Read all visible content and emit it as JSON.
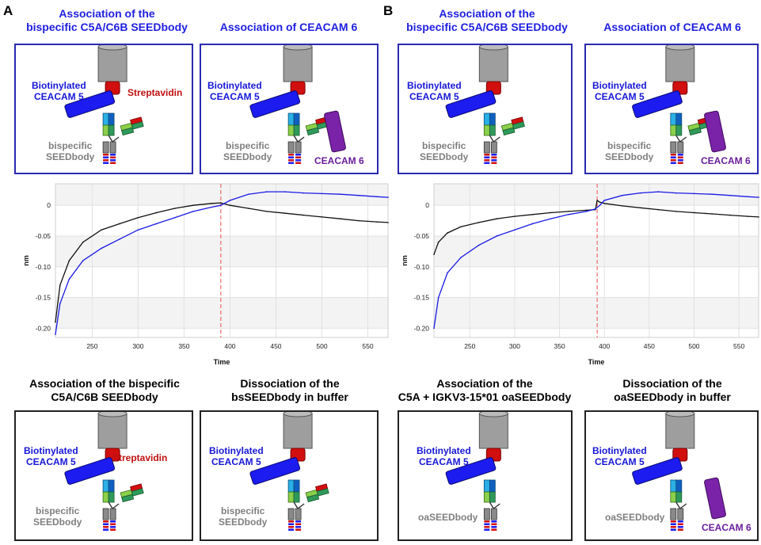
{
  "panels": {
    "A": {
      "letter": "A",
      "top_left": {
        "title": "Association of the\nbispecific C5A/C6B SEEDbody",
        "labels": {
          "biotin": "Biotinylated\nCEACAM 5",
          "strep": "Streptavidin",
          "seed": "bispecific\nSEEDbody"
        }
      },
      "top_right": {
        "title": "Association of CEACAM 6",
        "labels": {
          "biotin": "Biotinylated\nCEACAM 5",
          "seed": "bispecific\nSEEDbody",
          "ceacam6": "CEACAM 6"
        }
      },
      "bottom_left": {
        "title": "Association of the bispecific\nC5A/C6B SEEDbody",
        "labels": {
          "biotin": "Biotinylated\nCEACAM 5",
          "strep": "Streptavidin",
          "seed": "bispecific\nSEEDbody"
        }
      },
      "bottom_right": {
        "title": "Dissociation of the\nbsSEEDbody in buffer",
        "labels": {
          "biotin": "Biotinylated\nCEACAM 5",
          "seed": "bispecific\nSEEDbody"
        }
      }
    },
    "B": {
      "letter": "B",
      "top_left": {
        "title": "Association of the\nbispecific C5A/C6B SEEDbody",
        "labels": {
          "biotin": "Biotinylated\nCEACAM 5",
          "seed": "bispecific\nSEEDbody"
        }
      },
      "top_right": {
        "title": "Association of CEACAM 6",
        "labels": {
          "biotin": "Biotinylated\nCEACAM 5",
          "seed": "bispecific\nSEEDbody",
          "ceacam6": "CEACAM 6"
        }
      },
      "bottom_left": {
        "title": "Association of the\nC5A + IGKV3-15*01 oaSEEDbody",
        "labels": {
          "biotin": "Biotinylated\nCEACAM 5",
          "seed": "oaSEEDbody"
        }
      },
      "bottom_right": {
        "title": "Dissociation of the\noaSEEDbody in buffer",
        "labels": {
          "biotin": "Biotinylated\nCEACAM 5",
          "seed": "oaSEEDbody",
          "ceacam6": "CEACAM 6"
        }
      }
    }
  },
  "colors": {
    "blue_series": "#1a1ae6",
    "black_series": "#111111",
    "marker_line": "#ee6b6b",
    "band": "#f3f3f3"
  },
  "chart_data": [
    {
      "type": "line",
      "panel": "A",
      "xlabel": "Time",
      "ylabel": "nm",
      "xlim": [
        210,
        572
      ],
      "ylim": [
        -0.215,
        0.035
      ],
      "xticks": [
        250,
        300,
        350,
        400,
        450,
        500,
        550
      ],
      "yticks": [
        0,
        -0.05,
        -0.1,
        -0.15,
        -0.2
      ],
      "ytick_labels": [
        "0",
        "-0.05",
        "-0.10",
        "-0.15",
        "-0.20"
      ],
      "marker_x": 390,
      "series": [
        {
          "name": "black",
          "x": [
            210,
            215,
            225,
            240,
            260,
            280,
            300,
            320,
            340,
            360,
            380,
            390,
            400,
            420,
            440,
            460,
            480,
            500,
            520,
            540,
            560,
            572
          ],
          "y": [
            -0.19,
            -0.13,
            -0.09,
            -0.06,
            -0.04,
            -0.03,
            -0.02,
            -0.012,
            -0.005,
            0.0,
            0.003,
            0.004,
            0.0,
            -0.005,
            -0.01,
            -0.013,
            -0.016,
            -0.019,
            -0.022,
            -0.025,
            -0.027,
            -0.028
          ]
        },
        {
          "name": "blue",
          "x": [
            210,
            215,
            225,
            240,
            260,
            280,
            300,
            320,
            340,
            360,
            380,
            390,
            400,
            420,
            440,
            460,
            480,
            500,
            520,
            540,
            560,
            572
          ],
          "y": [
            -0.21,
            -0.16,
            -0.12,
            -0.09,
            -0.07,
            -0.055,
            -0.04,
            -0.03,
            -0.02,
            -0.01,
            -0.003,
            0.0,
            0.008,
            0.018,
            0.022,
            0.022,
            0.02,
            0.019,
            0.018,
            0.016,
            0.014,
            0.013
          ]
        }
      ]
    },
    {
      "type": "line",
      "panel": "B",
      "xlabel": "Time",
      "ylabel": "nm",
      "xlim": [
        210,
        572
      ],
      "ylim": [
        -0.215,
        0.035
      ],
      "xticks": [
        250,
        300,
        350,
        400,
        450,
        500,
        550
      ],
      "yticks": [
        0,
        -0.05,
        -0.1,
        -0.15,
        -0.2
      ],
      "ytick_labels": [
        "0",
        "-0.05",
        "-0.10",
        "-0.15",
        "-0.20"
      ],
      "marker_x": 392,
      "series": [
        {
          "name": "black",
          "x": [
            210,
            215,
            225,
            240,
            260,
            280,
            300,
            320,
            340,
            360,
            380,
            390,
            392,
            395,
            400,
            420,
            440,
            460,
            480,
            500,
            520,
            540,
            560,
            572
          ],
          "y": [
            -0.08,
            -0.06,
            -0.045,
            -0.035,
            -0.028,
            -0.022,
            -0.018,
            -0.015,
            -0.012,
            -0.01,
            -0.008,
            -0.007,
            0.008,
            0.005,
            0.003,
            -0.001,
            -0.004,
            -0.007,
            -0.01,
            -0.012,
            -0.014,
            -0.016,
            -0.018,
            -0.019
          ]
        },
        {
          "name": "blue",
          "x": [
            210,
            215,
            225,
            240,
            260,
            280,
            300,
            320,
            340,
            360,
            380,
            390,
            395,
            400,
            420,
            440,
            460,
            480,
            500,
            520,
            540,
            560,
            572
          ],
          "y": [
            -0.2,
            -0.15,
            -0.11,
            -0.085,
            -0.065,
            -0.05,
            -0.04,
            -0.03,
            -0.022,
            -0.015,
            -0.01,
            -0.006,
            0.0,
            0.008,
            0.016,
            0.02,
            0.022,
            0.02,
            0.019,
            0.018,
            0.016,
            0.014,
            0.013
          ]
        }
      ]
    }
  ]
}
